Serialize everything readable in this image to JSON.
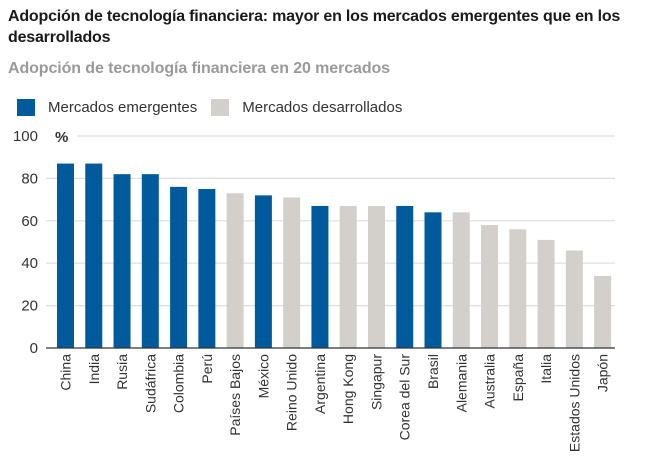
{
  "colors": {
    "emerging": "#005a9c",
    "developed": "#d3d0cb",
    "grid": "#dddddd",
    "axis": "#333333"
  },
  "chart_data": {
    "type": "bar",
    "title": "Adopción de tecnología financiera: mayor en los mercados emergentes que en los desarrollados",
    "subtitle": "Adopción de tecnología financiera en 20 mercados",
    "xlabel": "",
    "ylabel": "%",
    "ylim": [
      0,
      100
    ],
    "yticks": [
      0,
      20,
      40,
      60,
      80,
      100
    ],
    "grid": true,
    "legend_position": "top-left",
    "legend": [
      {
        "name": "Mercados emergentes",
        "group": "emerging"
      },
      {
        "name": "Mercados desarrollados",
        "group": "developed"
      }
    ],
    "categories": [
      "China",
      "India",
      "Rusia",
      "Sudáfrica",
      "Colombia",
      "Perú",
      "Países Bajos",
      "México",
      "Reino Unido",
      "Argentina",
      "Hong Kong",
      "Singapur",
      "Corea del Sur",
      "Brasil",
      "Alemania",
      "Australia",
      "España",
      "Italia",
      "Estados Unidos",
      "Japón"
    ],
    "values": [
      87,
      87,
      82,
      82,
      76,
      75,
      73,
      72,
      71,
      67,
      67,
      67,
      67,
      64,
      64,
      58,
      56,
      51,
      46,
      34
    ],
    "groups": [
      "emerging",
      "emerging",
      "emerging",
      "emerging",
      "emerging",
      "emerging",
      "developed",
      "emerging",
      "developed",
      "emerging",
      "developed",
      "developed",
      "emerging",
      "emerging",
      "developed",
      "developed",
      "developed",
      "developed",
      "developed",
      "developed"
    ]
  }
}
